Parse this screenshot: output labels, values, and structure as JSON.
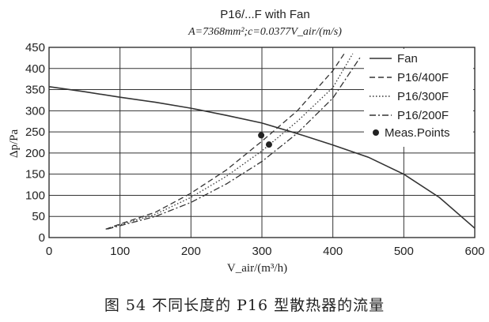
{
  "chart_data": {
    "type": "line",
    "title": "P16/...F with Fan",
    "subtitle": "A=7368mm²;c=0.0377V_air/(m/s)",
    "xlabel": "V_air/(m³/h)",
    "ylabel": "Δp/Pa",
    "xlim": [
      0,
      600
    ],
    "ylim": [
      0,
      450
    ],
    "xticks": [
      0,
      100,
      200,
      300,
      400,
      500,
      600
    ],
    "yticks": [
      0,
      50,
      100,
      150,
      200,
      250,
      300,
      350,
      400,
      450
    ],
    "grid": true,
    "legend_position": "right",
    "series": [
      {
        "name": "Fan",
        "style": "solid",
        "x": [
          0,
          50,
          100,
          150,
          200,
          250,
          300,
          350,
          400,
          450,
          500,
          550,
          600
        ],
        "y": [
          357,
          345,
          332,
          320,
          306,
          289,
          271,
          246,
          219,
          190,
          150,
          95,
          22
        ]
      },
      {
        "name": "P16/400F",
        "style": "dashed",
        "x": [
          80,
          100,
          150,
          200,
          250,
          300,
          350,
          400,
          418
        ],
        "y": [
          20,
          32,
          60,
          105,
          160,
          228,
          300,
          395,
          440
        ]
      },
      {
        "name": "P16/300F",
        "style": "dotted",
        "x": [
          80,
          100,
          150,
          200,
          250,
          300,
          350,
          400,
          428
        ],
        "y": [
          20,
          30,
          55,
          95,
          145,
          205,
          275,
          355,
          435
        ]
      },
      {
        "name": "P16/200F",
        "style": "dashdot",
        "x": [
          82,
          100,
          150,
          200,
          250,
          300,
          350,
          400,
          440
        ],
        "y": [
          20,
          28,
          50,
          83,
          127,
          180,
          247,
          330,
          430
        ]
      }
    ],
    "points": {
      "name": "Meas.Points",
      "x": [
        299,
        310
      ],
      "y": [
        242,
        220
      ]
    }
  },
  "caption": "图 54    不同长度的 P16 型散热器的流量"
}
